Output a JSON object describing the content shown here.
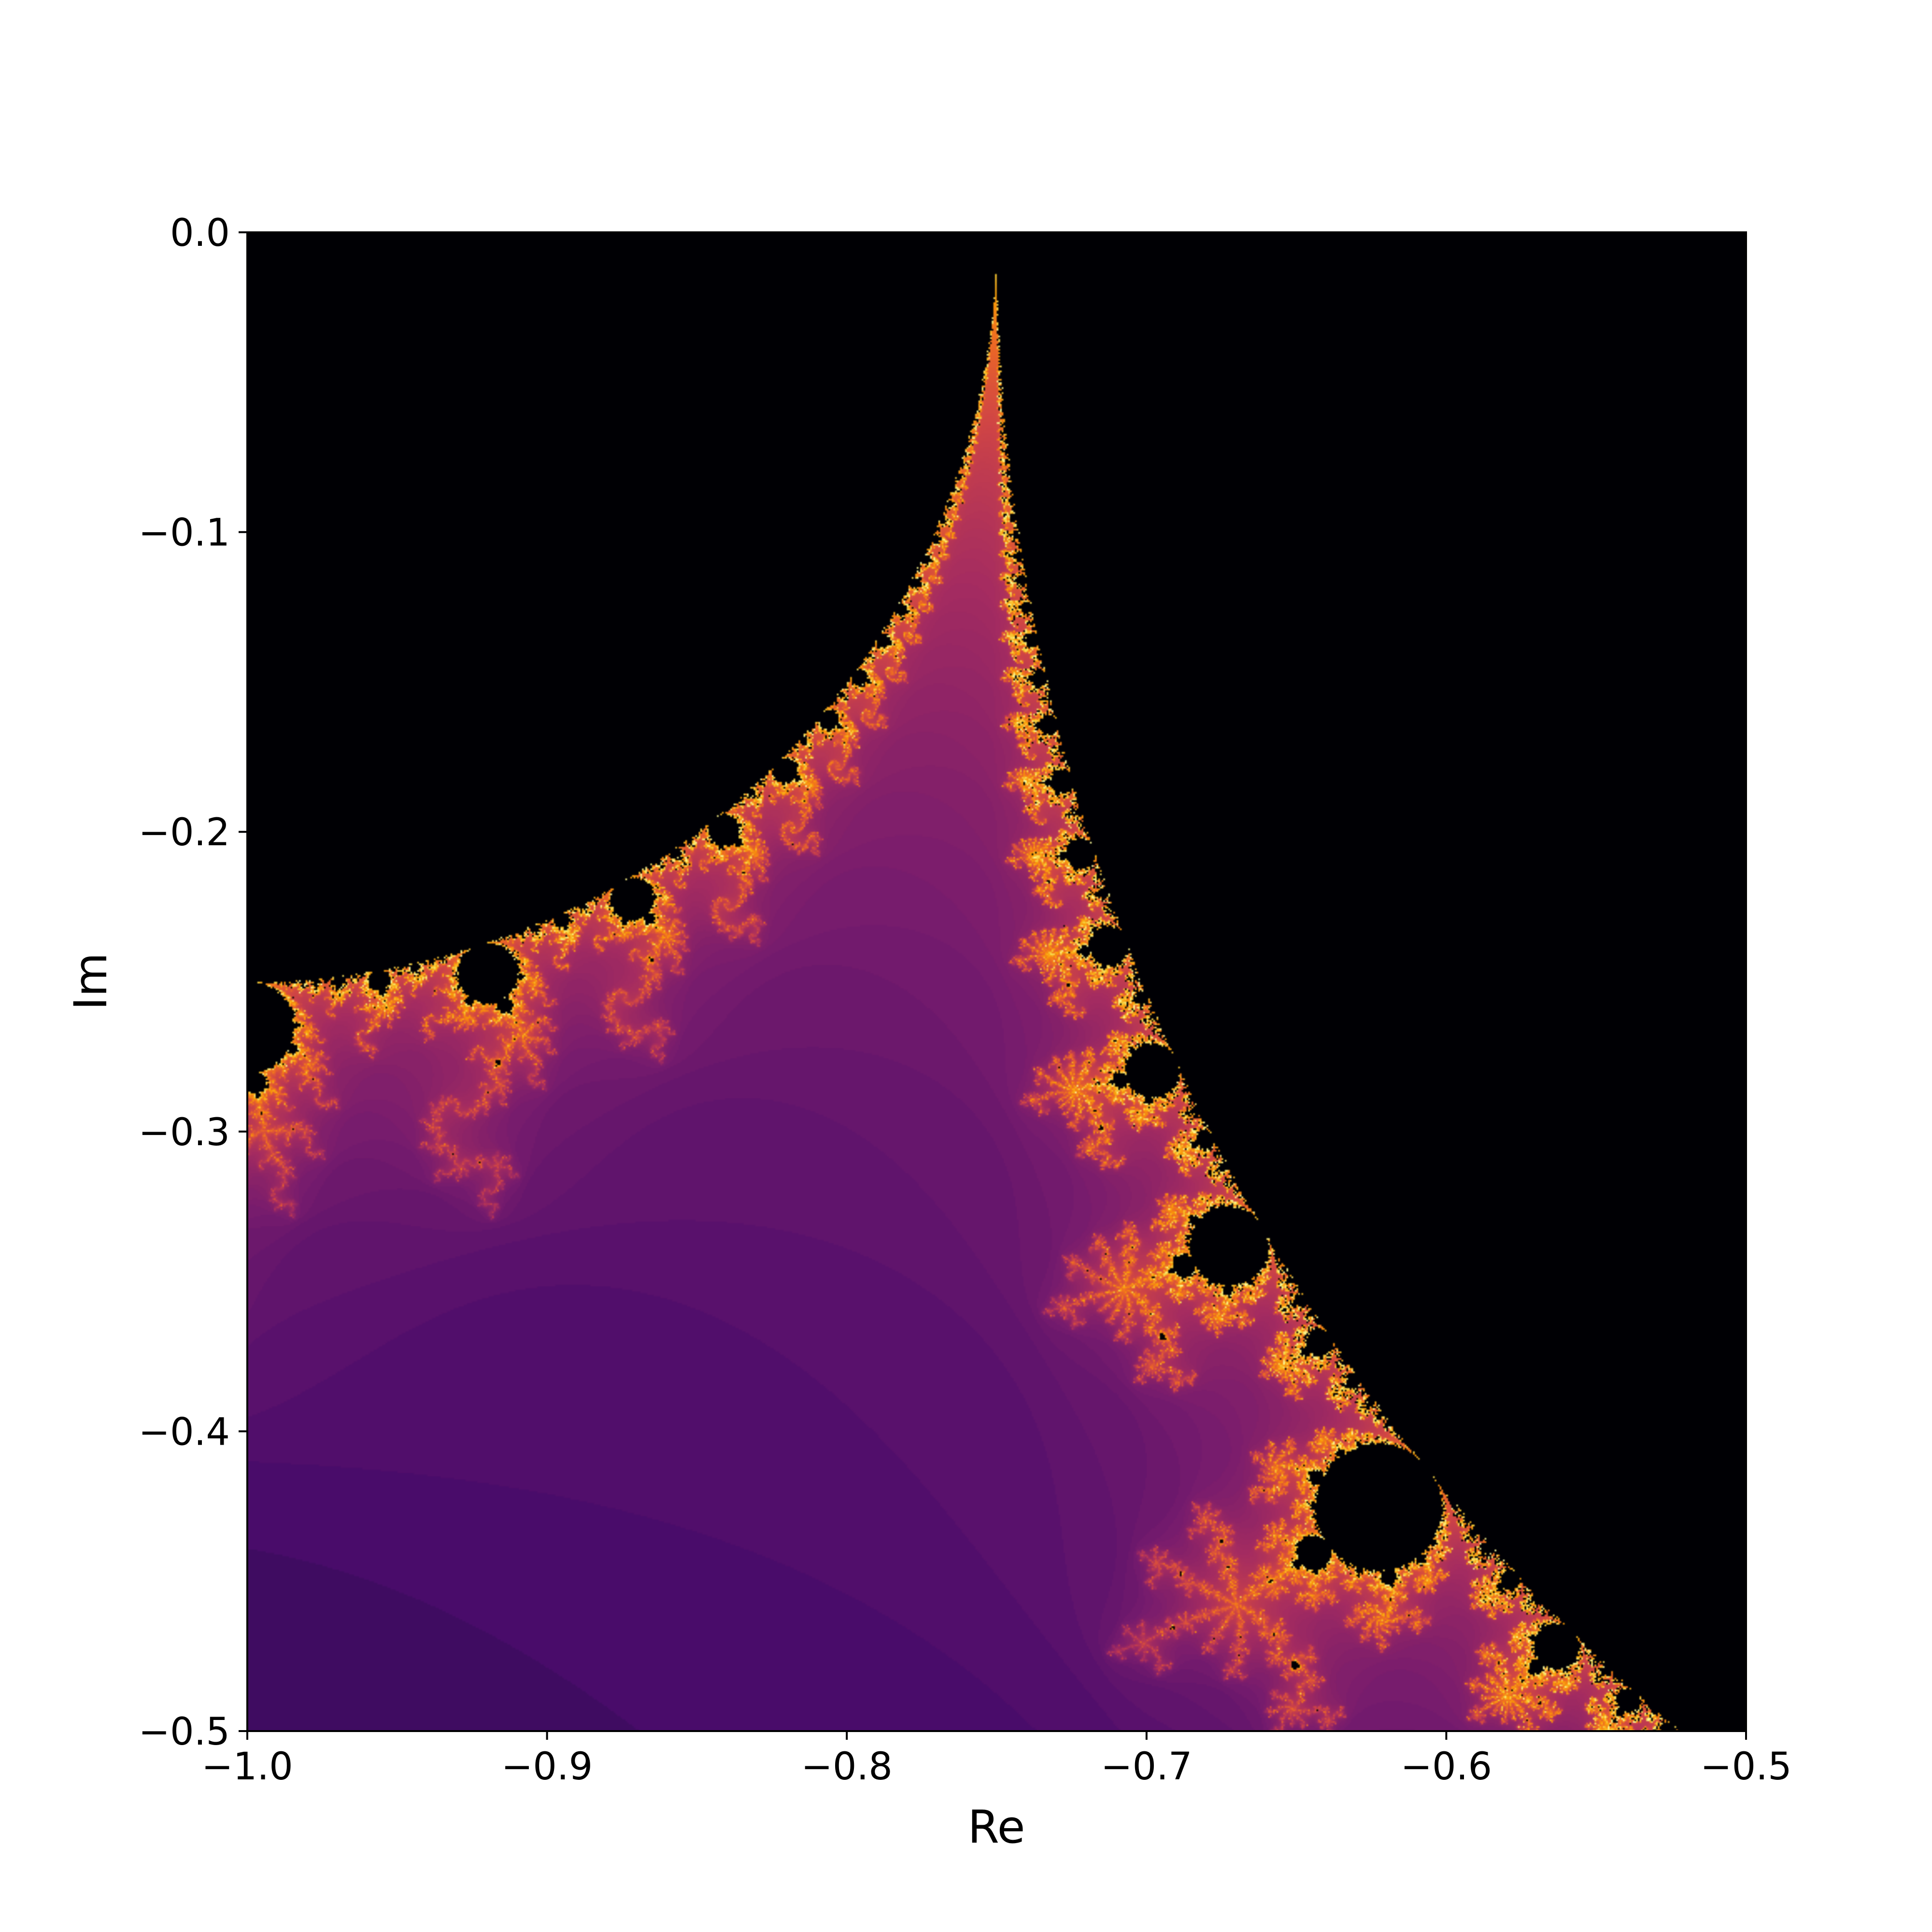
{
  "chart_data": {
    "type": "heatmap",
    "title": "",
    "xlabel": "Re",
    "ylabel": "Im",
    "xlim": [
      -1.0,
      -0.5
    ],
    "ylim": [
      -0.5,
      0.0
    ],
    "x_ticks": [
      -1.0,
      -0.9,
      -0.8,
      -0.7,
      -0.6,
      -0.5
    ],
    "x_tick_labels": [
      "−1.0",
      "−0.9",
      "−0.8",
      "−0.7",
      "−0.6",
      "−0.5"
    ],
    "y_ticks": [
      0.0,
      -0.1,
      -0.2,
      -0.3,
      -0.4,
      -0.5
    ],
    "y_tick_labels": [
      "0.0",
      "−0.1",
      "−0.2",
      "−0.3",
      "−0.4",
      "−0.5"
    ],
    "grid": false,
    "legend": "none",
    "colormap": "inferno",
    "colormap_stops": [
      "#000004",
      "#1b0c41",
      "#4a0c6b",
      "#781c6d",
      "#a52c60",
      "#cf4446",
      "#ed6925",
      "#fb9b06",
      "#f7d13d",
      "#fcffa4"
    ],
    "background_color": "#000004",
    "rendering": "Mandelbrot escape-time over the plotted region"
  }
}
